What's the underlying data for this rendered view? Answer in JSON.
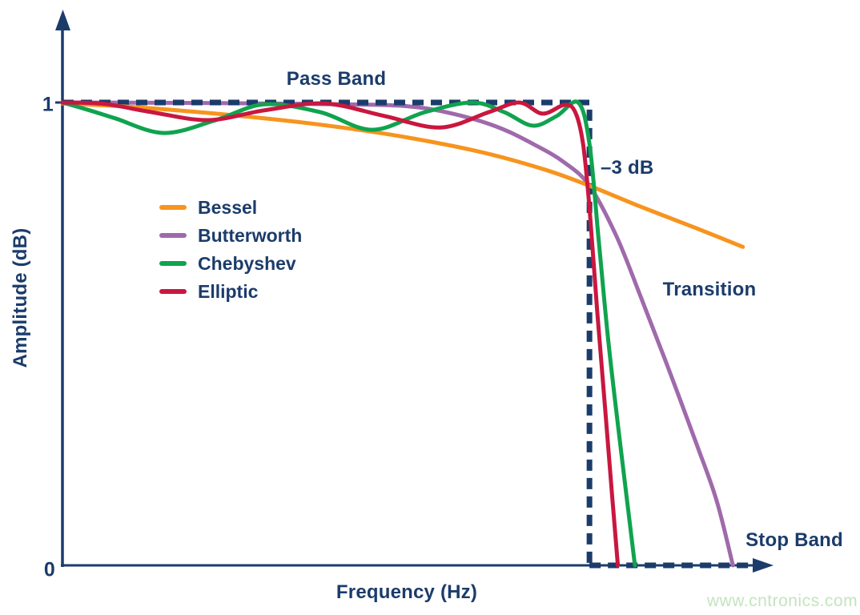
{
  "colors": {
    "navy": "#1b3c6b",
    "bessel": "#f7941e",
    "butterworth": "#9f6aab",
    "chebyshev": "#10a34e",
    "elliptic": "#c9173f",
    "watermark_green": "#c3e5bd",
    "background": "#ffffff"
  },
  "watermark": {
    "text": "www.cntronics.com"
  },
  "chart_data": {
    "type": "line",
    "title": "",
    "xlabel": "Frequency (Hz)",
    "ylabel": "Amplitude (dB)",
    "grid": false,
    "legend_position": "upper-left-inside",
    "x_axis": {
      "range_normalized": [
        0,
        1
      ],
      "tick_labels": [],
      "arrow": false
    },
    "y_axis": {
      "range": [
        0,
        1.15
      ],
      "arrow": true,
      "ticks": [
        {
          "value": 1,
          "label": "1"
        },
        {
          "value": 0,
          "label": "0"
        }
      ]
    },
    "annotations": {
      "pass_band": "Pass Band",
      "minus_3db": "–3 dB",
      "transition": "Transition",
      "stop_band": "Stop Band"
    },
    "cutoff_x_normalized": 0.742,
    "ideal_response": {
      "name": "Ideal brick-wall response",
      "style": "dashed",
      "arrow_at_end": true,
      "points": [
        [
          0,
          1
        ],
        [
          0.742,
          1
        ],
        [
          0.742,
          0
        ],
        [
          1,
          0
        ]
      ]
    },
    "series": [
      {
        "name": "Bessel",
        "color_key": "bessel",
        "points": [
          [
            0,
            0.998
          ],
          [
            0.069,
            0.993
          ],
          [
            0.138,
            0.986
          ],
          [
            0.25,
            0.971
          ],
          [
            0.363,
            0.952
          ],
          [
            0.476,
            0.927
          ],
          [
            0.589,
            0.893
          ],
          [
            0.679,
            0.855
          ],
          [
            0.742,
            0.82
          ],
          [
            0.814,
            0.775
          ],
          [
            0.893,
            0.728
          ],
          [
            0.958,
            0.688
          ]
        ]
      },
      {
        "name": "Butterworth",
        "color_key": "butterworth",
        "points": [
          [
            0,
            1
          ],
          [
            0.2,
            0.999
          ],
          [
            0.35,
            0.997
          ],
          [
            0.476,
            0.993
          ],
          [
            0.543,
            0.978
          ],
          [
            0.611,
            0.948
          ],
          [
            0.667,
            0.907
          ],
          [
            0.707,
            0.87
          ],
          [
            0.742,
            0.82
          ],
          [
            0.78,
            0.711
          ],
          [
            0.814,
            0.581
          ],
          [
            0.853,
            0.426
          ],
          [
            0.893,
            0.261
          ],
          [
            0.921,
            0.14
          ],
          [
            0.944,
            0
          ]
        ]
      },
      {
        "name": "Chebyshev",
        "color_key": "chebyshev",
        "points": [
          [
            0,
            1
          ],
          [
            0.034,
            0.985
          ],
          [
            0.074,
            0.966
          ],
          [
            0.143,
            0.934
          ],
          [
            0.216,
            0.962
          ],
          [
            0.284,
            0.996
          ],
          [
            0.363,
            0.979
          ],
          [
            0.436,
            0.941
          ],
          [
            0.51,
            0.979
          ],
          [
            0.577,
            1.0
          ],
          [
            0.622,
            0.979
          ],
          [
            0.662,
            0.95
          ],
          [
            0.696,
            0.971
          ],
          [
            0.726,
            1.0
          ],
          [
            0.742,
            0.91
          ],
          [
            0.755,
            0.702
          ],
          [
            0.769,
            0.478
          ],
          [
            0.786,
            0.253
          ],
          [
            0.806,
            0
          ]
        ]
      },
      {
        "name": "Elliptic",
        "color_key": "elliptic",
        "points": [
          [
            0,
            1
          ],
          [
            0.059,
            0.997
          ],
          [
            0.126,
            0.979
          ],
          [
            0.205,
            0.962
          ],
          [
            0.284,
            0.983
          ],
          [
            0.369,
            0.998
          ],
          [
            0.453,
            0.971
          ],
          [
            0.532,
            0.946
          ],
          [
            0.6,
            0.979
          ],
          [
            0.643,
            1.0
          ],
          [
            0.676,
            0.976
          ],
          [
            0.707,
            0.995
          ],
          [
            0.722,
            0.979
          ],
          [
            0.733,
            0.91
          ],
          [
            0.742,
            0.772
          ],
          [
            0.753,
            0.547
          ],
          [
            0.764,
            0.339
          ],
          [
            0.774,
            0.149
          ],
          [
            0.782,
            0
          ]
        ]
      }
    ]
  }
}
